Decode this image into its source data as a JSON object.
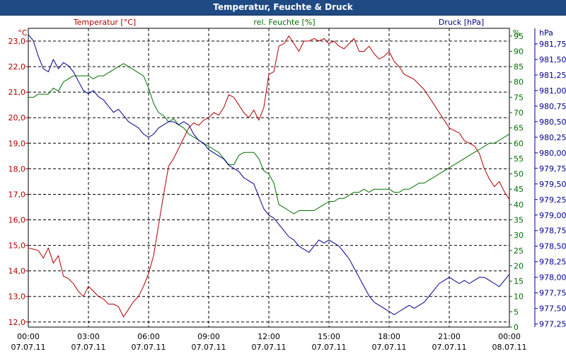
{
  "window": {
    "title": "Temperatur, Feuchte & Druck"
  },
  "chart_data": {
    "type": "line",
    "title": "Temperatur, Feuchte & Druck",
    "x": [
      "00:00",
      "00:15",
      "00:30",
      "00:45",
      "01:00",
      "01:15",
      "01:30",
      "01:45",
      "02:00",
      "02:15",
      "02:30",
      "02:45",
      "03:00",
      "03:15",
      "03:30",
      "03:45",
      "04:00",
      "04:15",
      "04:30",
      "04:45",
      "05:00",
      "05:15",
      "05:30",
      "05:45",
      "06:00",
      "06:15",
      "06:30",
      "06:45",
      "07:00",
      "07:15",
      "07:30",
      "07:45",
      "08:00",
      "08:15",
      "08:30",
      "08:45",
      "09:00",
      "09:15",
      "09:30",
      "09:45",
      "10:00",
      "10:15",
      "10:30",
      "10:45",
      "11:00",
      "11:15",
      "11:30",
      "11:45",
      "12:00",
      "12:15",
      "12:30",
      "12:45",
      "13:00",
      "13:15",
      "13:30",
      "13:45",
      "14:00",
      "14:15",
      "14:30",
      "14:45",
      "15:00",
      "15:15",
      "15:30",
      "15:45",
      "16:00",
      "16:15",
      "16:30",
      "16:45",
      "17:00",
      "17:15",
      "17:30",
      "17:45",
      "18:00",
      "18:15",
      "18:30",
      "18:45",
      "19:00",
      "19:15",
      "19:30",
      "19:45",
      "20:00",
      "20:15",
      "20:30",
      "20:45",
      "21:00",
      "21:15",
      "21:30",
      "21:45",
      "22:00",
      "22:15",
      "22:30",
      "22:45",
      "23:00",
      "23:15",
      "23:30",
      "23:45",
      "24:00"
    ],
    "x_tick_labels": [
      {
        "time": "00:00",
        "date": "07.07.11"
      },
      {
        "time": "03:00",
        "date": "07.07.11"
      },
      {
        "time": "06:00",
        "date": "07.07.11"
      },
      {
        "time": "09:00",
        "date": "07.07.11"
      },
      {
        "time": "12:00",
        "date": "07.07.11"
      },
      {
        "time": "15:00",
        "date": "07.07.11"
      },
      {
        "time": "18:00",
        "date": "07.07.11"
      },
      {
        "time": "21:00",
        "date": "07.07.11"
      },
      {
        "time": "00:00",
        "date": "08.07.11"
      }
    ],
    "axes": {
      "temperature": {
        "label": "Temperatur [°C]",
        "unit": "°C",
        "range": [
          11.8,
          23.5
        ],
        "ticks": [
          "12,0",
          "13,0",
          "14,0",
          "15,0",
          "16,0",
          "17,0",
          "18,0",
          "19,0",
          "20,0",
          "21,0",
          "22,0",
          "23,0"
        ],
        "color": "#b00000"
      },
      "humidity": {
        "label": "rel. Feuchte [%]",
        "unit": "%",
        "range": [
          0,
          97.5
        ],
        "ticks": [
          "0",
          "5",
          "10",
          "15",
          "20",
          "25",
          "30",
          "35",
          "40",
          "45",
          "50",
          "55",
          "60",
          "65",
          "70",
          "75",
          "80",
          "85",
          "90",
          "95"
        ],
        "color": "#007000"
      },
      "pressure": {
        "label": "Druck [hPa]",
        "unit": "hPa",
        "range": [
          977.2,
          982.0
        ],
        "ticks": [
          "977,25",
          "977,50",
          "977,75",
          "978,00",
          "978,25",
          "978,50",
          "978,75",
          "979,00",
          "979,25",
          "979,50",
          "979,75",
          "980,00",
          "980,25",
          "980,50",
          "980,75",
          "981,00",
          "981,25",
          "981,50",
          "981,75"
        ],
        "color": "#00008c"
      }
    },
    "grid": true,
    "series": [
      {
        "name": "Temperatur [°C]",
        "axis": "temperature",
        "color": "#b00000",
        "values": [
          14.9,
          14.85,
          14.8,
          14.5,
          14.9,
          14.3,
          14.6,
          13.8,
          13.7,
          13.5,
          13.2,
          13.0,
          13.4,
          13.2,
          13.0,
          12.9,
          12.7,
          12.7,
          12.6,
          12.2,
          12.5,
          12.8,
          13.0,
          13.4,
          13.9,
          14.6,
          15.8,
          17.0,
          18.1,
          18.4,
          18.8,
          19.2,
          19.6,
          19.8,
          19.7,
          19.9,
          20.0,
          20.2,
          20.1,
          20.4,
          20.9,
          20.8,
          20.5,
          20.2,
          20.0,
          20.3,
          19.9,
          20.4,
          21.7,
          21.8,
          22.8,
          22.9,
          23.2,
          22.9,
          22.6,
          23.0,
          23.0,
          23.1,
          23.0,
          23.1,
          22.9,
          23.0,
          22.8,
          22.7,
          22.9,
          23.1,
          22.6,
          22.6,
          22.8,
          22.5,
          22.3,
          22.4,
          22.6,
          22.2,
          22.0,
          21.7,
          21.6,
          21.5,
          21.3,
          21.1,
          20.8,
          20.5,
          20.2,
          19.9,
          19.6,
          19.5,
          19.4,
          19.1,
          19.0,
          18.9,
          18.6,
          18.0,
          17.6,
          17.3,
          17.5,
          17.1,
          16.8
        ]
      },
      {
        "name": "rel. Feuchte [%]",
        "axis": "humidity",
        "color": "#007000",
        "values": [
          75,
          75,
          76,
          76,
          76,
          78,
          77,
          80,
          81,
          82,
          82,
          82,
          82,
          81,
          82,
          82,
          83,
          84,
          85,
          86,
          85,
          84,
          83,
          82,
          78,
          73,
          70,
          69,
          67,
          68,
          66,
          65,
          63,
          62,
          61,
          60,
          59,
          58,
          57,
          55,
          53,
          53,
          56,
          57,
          57,
          57,
          55,
          51,
          50,
          47,
          40,
          39,
          38,
          37,
          38,
          38,
          38,
          38,
          39,
          40,
          41,
          41,
          42,
          42,
          43,
          44,
          44,
          45,
          44,
          45,
          45,
          45,
          45,
          44,
          44,
          45,
          45,
          46,
          47,
          47,
          48,
          49,
          50,
          51,
          52,
          53,
          54,
          55,
          56,
          57,
          58,
          59,
          60,
          60,
          61,
          62,
          63
        ]
      },
      {
        "name": "Druck [hPa]",
        "axis": "pressure",
        "color": "#00008c",
        "values": [
          981.9,
          981.8,
          981.55,
          981.35,
          981.3,
          981.5,
          981.35,
          981.45,
          981.4,
          981.3,
          981.15,
          981.0,
          980.95,
          981.0,
          980.9,
          980.85,
          980.75,
          980.65,
          980.7,
          980.6,
          980.5,
          980.45,
          980.4,
          980.3,
          980.25,
          980.3,
          980.4,
          980.45,
          980.5,
          980.5,
          980.45,
          980.5,
          980.45,
          980.3,
          980.2,
          980.15,
          980.05,
          980.0,
          979.95,
          979.9,
          979.8,
          979.75,
          979.7,
          979.6,
          979.55,
          979.5,
          979.3,
          979.1,
          979.0,
          978.95,
          978.85,
          978.75,
          978.65,
          978.6,
          978.5,
          978.45,
          978.4,
          978.5,
          978.6,
          978.55,
          978.6,
          978.55,
          978.5,
          978.4,
          978.3,
          978.15,
          978.0,
          977.85,
          977.7,
          977.6,
          977.55,
          977.5,
          977.45,
          977.4,
          977.45,
          977.5,
          977.55,
          977.5,
          977.55,
          977.6,
          977.7,
          977.8,
          977.9,
          977.95,
          978.0,
          977.95,
          977.9,
          977.95,
          977.9,
          977.95,
          978.0,
          978.0,
          977.95,
          977.9,
          977.85,
          977.95,
          978.05
        ]
      }
    ]
  }
}
